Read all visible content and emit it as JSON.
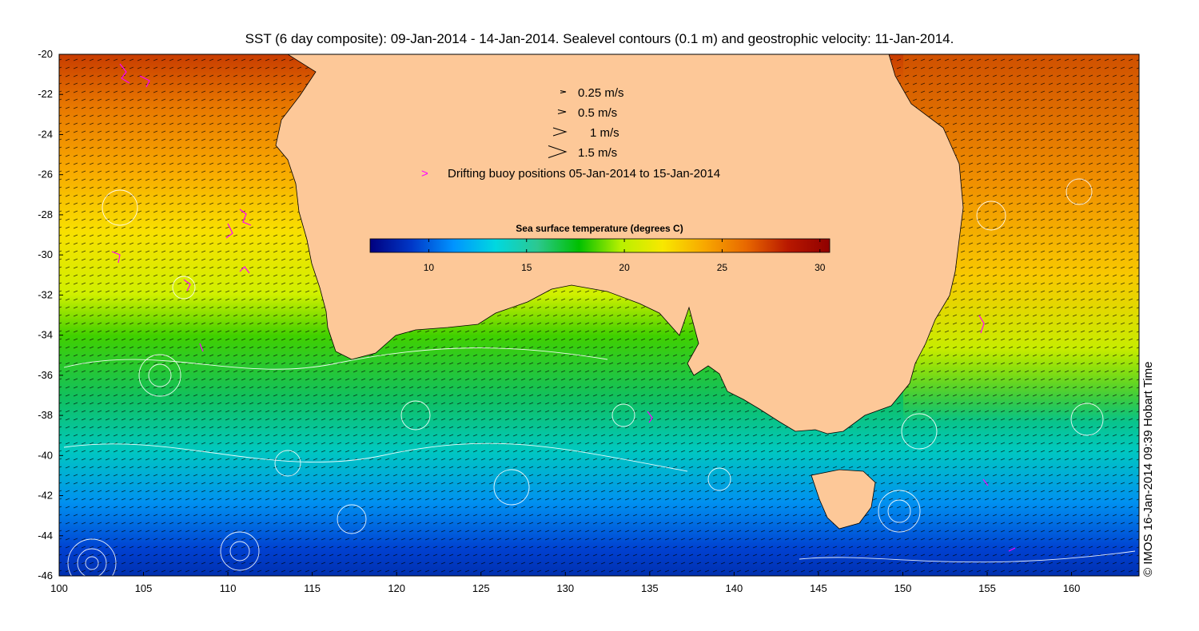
{
  "title": "SST (6 day composite): 09-Jan-2014 - 14-Jan-2014. Sealevel contours (0.1 m) and geostrophic velocity: 11-Jan-2014.",
  "x_axis": {
    "ticks": [
      "100",
      "105",
      "110",
      "115",
      "120",
      "125",
      "130",
      "135",
      "140",
      "145",
      "150",
      "155",
      "160"
    ],
    "range": [
      100,
      164
    ]
  },
  "y_axis": {
    "ticks": [
      "-20",
      "-22",
      "-24",
      "-26",
      "-28",
      "-30",
      "-32",
      "-34",
      "-36",
      "-38",
      "-40",
      "-42",
      "-44",
      "-46"
    ],
    "range": [
      -46,
      -20
    ]
  },
  "legend": {
    "speed_items": [
      {
        "label": "0.25 m/s",
        "speed": 0.25
      },
      {
        "label": "0.5 m/s",
        "speed": 0.5
      },
      {
        "label": "1 m/s",
        "speed": 1
      },
      {
        "label": "1.5 m/s",
        "speed": 1.5
      }
    ],
    "buoy_label": "Drifting buoy positions 05-Jan-2014 to 15-Jan-2014"
  },
  "colorbar": {
    "title": "Sea surface temperature (degrees C)",
    "ticks": [
      "10",
      "15",
      "20",
      "25",
      "30"
    ],
    "range": [
      7,
      30.5
    ],
    "stops": [
      "#00007f",
      "#0038c8",
      "#0094ff",
      "#00d8e0",
      "#2cc890",
      "#00c000",
      "#b8f000",
      "#f8e800",
      "#f8a800",
      "#e86800",
      "#b81800",
      "#900000"
    ]
  },
  "credit": "© IMOS 16-Jan-2014 09:39 Hobart Time",
  "colors": {
    "land": "#fdc898",
    "contour": "#ffffff",
    "arrow": "#000000",
    "buoy": "#ff00ff"
  }
}
